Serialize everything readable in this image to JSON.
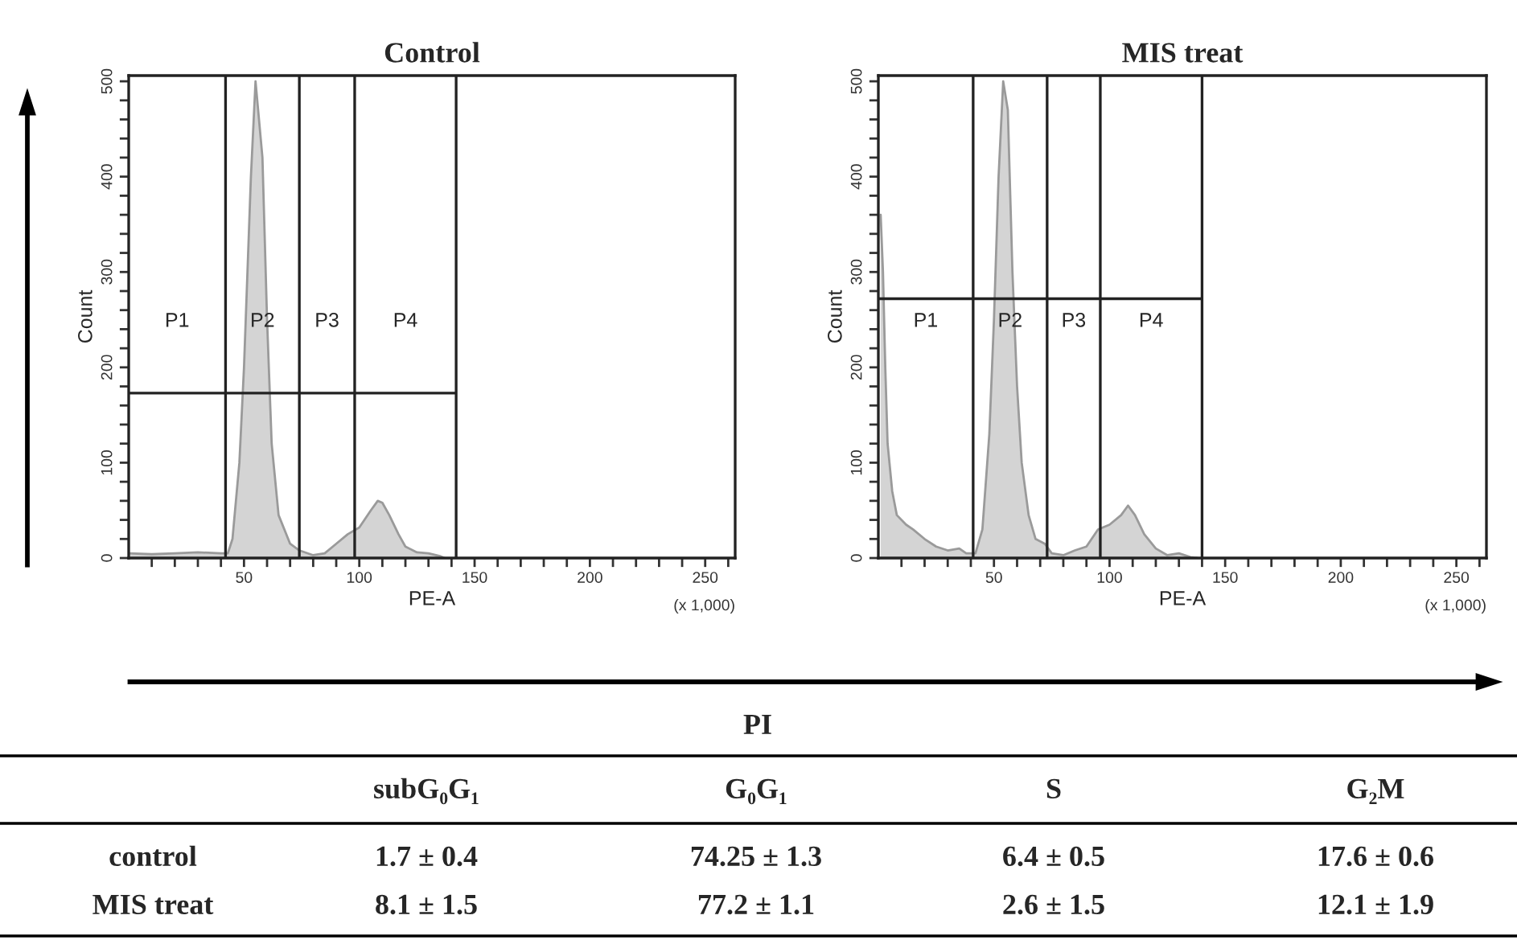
{
  "chart_data": [
    {
      "type": "area",
      "title": "Control",
      "xlabel": "PE-A",
      "ylabel": "Count",
      "x": [
        0,
        10,
        20,
        30,
        40,
        43,
        45,
        48,
        50,
        53,
        55,
        58,
        60,
        62,
        65,
        70,
        74,
        80,
        85,
        90,
        95,
        100,
        105,
        108,
        110,
        113,
        117,
        120,
        125,
        130,
        135,
        137
      ],
      "series": [
        {
          "color": "#d4d4d4",
          "values": [
            5,
            4,
            5,
            6,
            5,
            5,
            20,
            100,
            200,
            400,
            500,
            420,
            250,
            120,
            45,
            15,
            8,
            3,
            5,
            15,
            25,
            32,
            50,
            60,
            58,
            45,
            25,
            12,
            6,
            5,
            2,
            0
          ]
        }
      ],
      "xlim": [
        0,
        263
      ],
      "ylim": [
        0,
        506
      ],
      "xticks": [
        {
          "value": 10,
          "label": null
        },
        {
          "value": 20,
          "label": null
        },
        {
          "value": 30,
          "label": null
        },
        {
          "value": 40,
          "label": null
        },
        50,
        {
          "value": 60,
          "label": null
        },
        {
          "value": 70,
          "label": null
        },
        {
          "value": 80,
          "label": null
        },
        {
          "value": 90,
          "label": null
        },
        100,
        {
          "value": 110,
          "label": null
        },
        {
          "value": 120,
          "label": null
        },
        {
          "value": 130,
          "label": null
        },
        {
          "value": 140,
          "label": null
        },
        150,
        {
          "value": 160,
          "label": null
        },
        {
          "value": 170,
          "label": null
        },
        {
          "value": 180,
          "label": null
        },
        {
          "value": 190,
          "label": null
        },
        200,
        {
          "value": 210,
          "label": null
        },
        {
          "value": 220,
          "label": null
        },
        {
          "value": 230,
          "label": null
        },
        {
          "value": 240,
          "label": null
        },
        250,
        {
          "value": 260,
          "label": null
        }
      ],
      "yticks": [
        0,
        {
          "value": 20,
          "label": null
        },
        {
          "value": 40,
          "label": null
        },
        {
          "value": 60,
          "label": null
        },
        {
          "value": 80,
          "label": null
        },
        100,
        {
          "value": 120,
          "label": null
        },
        {
          "value": 140,
          "label": null
        },
        {
          "value": 160,
          "label": null
        },
        {
          "value": 180,
          "label": null
        },
        200,
        {
          "value": 220,
          "label": null
        },
        {
          "value": 240,
          "label": null
        },
        {
          "value": 260,
          "label": null
        },
        {
          "value": 280,
          "label": null
        },
        300,
        {
          "value": 320,
          "label": null
        },
        {
          "value": 340,
          "label": null
        },
        {
          "value": 360,
          "label": null
        },
        {
          "value": 380,
          "label": null
        },
        400,
        {
          "value": 420,
          "label": null
        },
        {
          "value": 440,
          "label": null
        },
        {
          "value": 460,
          "label": null
        },
        {
          "value": 480,
          "label": null
        },
        500
      ],
      "annotations": [
        "(x 1,000)"
      ],
      "ref_lines": [
        {
          "axis": "x",
          "value": 42,
          "label": "P1"
        },
        {
          "axis": "x",
          "value": 74,
          "label": "P2"
        },
        {
          "axis": "x",
          "value": 98,
          "label": "P3"
        },
        {
          "axis": "x",
          "value": 142,
          "label": "P4"
        },
        {
          "axis": "y",
          "value": 173
        }
      ],
      "grid": false
    },
    {
      "type": "area",
      "title": "MIS treat",
      "xlabel": "PE-A",
      "ylabel": "Count",
      "x": [
        1,
        2,
        3,
        4,
        6,
        8,
        12,
        15,
        20,
        25,
        30,
        35,
        38,
        42,
        45,
        48,
        50,
        52,
        54,
        56,
        58,
        60,
        62,
        65,
        68,
        72,
        75,
        80,
        85,
        90,
        95,
        100,
        105,
        108,
        111,
        115,
        120,
        125,
        130,
        135,
        138
      ],
      "series": [
        {
          "color": "#d4d4d4",
          "values": [
            360,
            300,
            200,
            120,
            70,
            45,
            35,
            30,
            20,
            12,
            8,
            10,
            5,
            5,
            30,
            130,
            250,
            400,
            500,
            470,
            300,
            180,
            100,
            45,
            20,
            15,
            5,
            3,
            8,
            12,
            30,
            35,
            45,
            55,
            45,
            25,
            10,
            3,
            5,
            1,
            0
          ]
        }
      ],
      "xlim": [
        0,
        263
      ],
      "ylim": [
        0,
        506
      ],
      "xticks": [
        {
          "value": 10,
          "label": null
        },
        {
          "value": 20,
          "label": null
        },
        {
          "value": 30,
          "label": null
        },
        {
          "value": 40,
          "label": null
        },
        50,
        {
          "value": 60,
          "label": null
        },
        {
          "value": 70,
          "label": null
        },
        {
          "value": 80,
          "label": null
        },
        {
          "value": 90,
          "label": null
        },
        100,
        {
          "value": 110,
          "label": null
        },
        {
          "value": 120,
          "label": null
        },
        {
          "value": 130,
          "label": null
        },
        {
          "value": 140,
          "label": null
        },
        150,
        {
          "value": 160,
          "label": null
        },
        {
          "value": 170,
          "label": null
        },
        {
          "value": 180,
          "label": null
        },
        {
          "value": 190,
          "label": null
        },
        200,
        {
          "value": 210,
          "label": null
        },
        {
          "value": 220,
          "label": null
        },
        {
          "value": 230,
          "label": null
        },
        {
          "value": 240,
          "label": null
        },
        250,
        {
          "value": 260,
          "label": null
        }
      ],
      "yticks": [
        0,
        {
          "value": 20,
          "label": null
        },
        {
          "value": 40,
          "label": null
        },
        {
          "value": 60,
          "label": null
        },
        {
          "value": 80,
          "label": null
        },
        100,
        {
          "value": 120,
          "label": null
        },
        {
          "value": 140,
          "label": null
        },
        {
          "value": 160,
          "label": null
        },
        {
          "value": 180,
          "label": null
        },
        200,
        {
          "value": 220,
          "label": null
        },
        {
          "value": 240,
          "label": null
        },
        {
          "value": 260,
          "label": null
        },
        {
          "value": 280,
          "label": null
        },
        300,
        {
          "value": 320,
          "label": null
        },
        {
          "value": 340,
          "label": null
        },
        {
          "value": 360,
          "label": null
        },
        {
          "value": 380,
          "label": null
        },
        400,
        {
          "value": 420,
          "label": null
        },
        {
          "value": 440,
          "label": null
        },
        {
          "value": 460,
          "label": null
        },
        {
          "value": 480,
          "label": null
        },
        500
      ],
      "annotations": [
        "(x 1,000)"
      ],
      "ref_lines": [
        {
          "axis": "x",
          "value": 41,
          "label": "P1"
        },
        {
          "axis": "x",
          "value": 73,
          "label": "P2"
        },
        {
          "axis": "x",
          "value": 96,
          "label": "P3"
        },
        {
          "axis": "x",
          "value": 140,
          "label": "P4"
        },
        {
          "axis": "y",
          "value": 272
        }
      ],
      "grid": false
    },
    {
      "type": "other",
      "title": "PI",
      "categories": [
        "subG₀G₁",
        "G₀G₁",
        "S",
        "G₂M"
      ],
      "y_categories": [
        "control",
        "MIS treat"
      ],
      "cell_labels": [
        [
          "1.7 ± 0.4",
          "74.25 ± 1.3",
          "6.4 ± 0.5",
          "17.6 ± 0.6"
        ],
        [
          "8.1 ± 1.5",
          "77.2 ± 1.1",
          "2.6 ± 1.5",
          "12.1 ± 1.9"
        ]
      ]
    }
  ]
}
